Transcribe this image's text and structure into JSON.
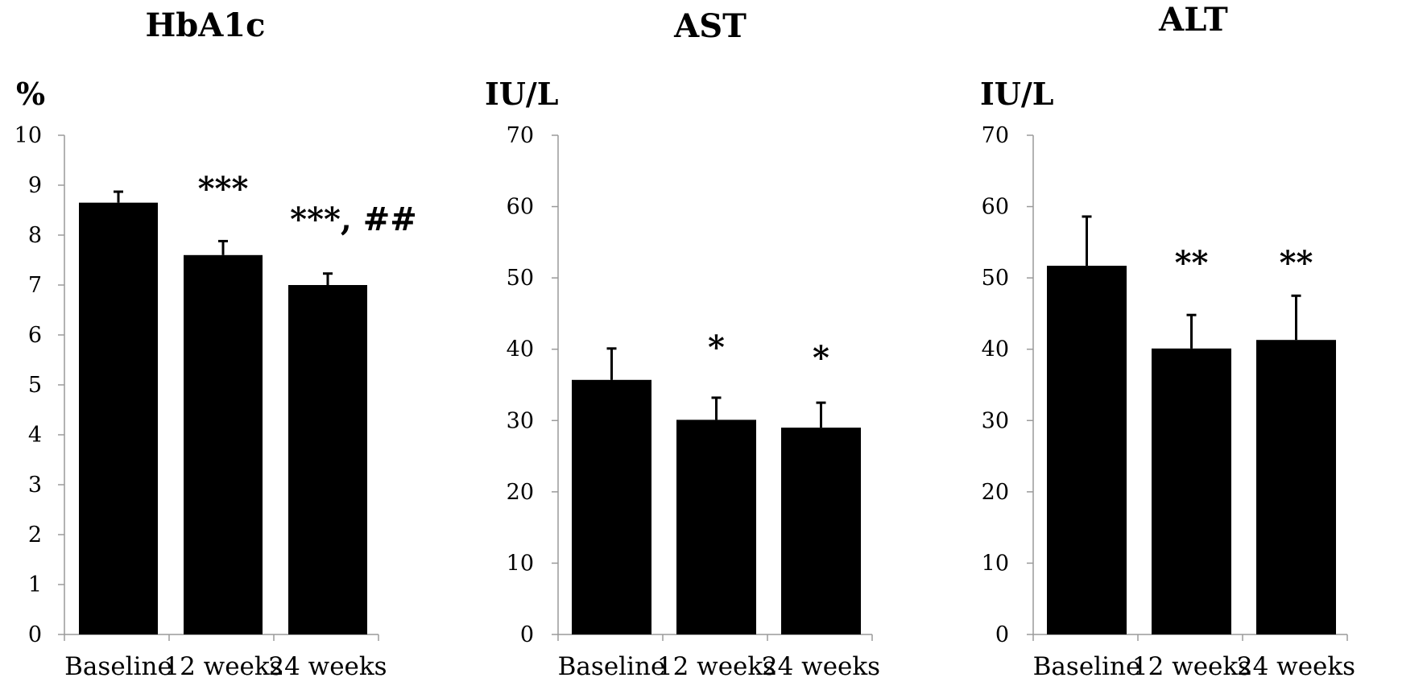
{
  "chart_data": [
    {
      "type": "bar",
      "title": "HbA1c",
      "ylabel": "%",
      "categories": [
        "Baseline",
        "12 weeks",
        "24 weeks"
      ],
      "values": [
        8.65,
        7.6,
        7.0
      ],
      "errors": [
        0.22,
        0.28,
        0.23
      ],
      "ylim": [
        0,
        10
      ],
      "yticks": [
        0,
        1,
        2,
        3,
        4,
        5,
        6,
        7,
        8,
        9,
        10
      ],
      "annotations": [
        "",
        "***",
        "***, ##"
      ],
      "bar_color": "#000000",
      "grid": false
    },
    {
      "type": "bar",
      "title": "AST",
      "ylabel": "IU/L",
      "categories": [
        "Baseline",
        "12 weeks",
        "24 weeks"
      ],
      "values": [
        35.7,
        30.1,
        29.0
      ],
      "errors": [
        4.4,
        3.1,
        3.5
      ],
      "ylim": [
        0,
        70
      ],
      "yticks": [
        0,
        10,
        20,
        30,
        40,
        50,
        60,
        70
      ],
      "annotations": [
        "",
        "*",
        "*"
      ],
      "bar_color": "#000000",
      "grid": false
    },
    {
      "type": "bar",
      "title": "ALT",
      "ylabel": "IU/L",
      "categories": [
        "Baseline",
        "12 weeks",
        "24 weeks"
      ],
      "values": [
        51.7,
        40.1,
        41.3
      ],
      "errors": [
        6.9,
        4.7,
        6.2
      ],
      "ylim": [
        0,
        70
      ],
      "yticks": [
        0,
        10,
        20,
        30,
        40,
        50,
        60,
        70
      ],
      "annotations": [
        "",
        "**",
        "**"
      ],
      "bar_color": "#000000",
      "grid": false
    }
  ]
}
